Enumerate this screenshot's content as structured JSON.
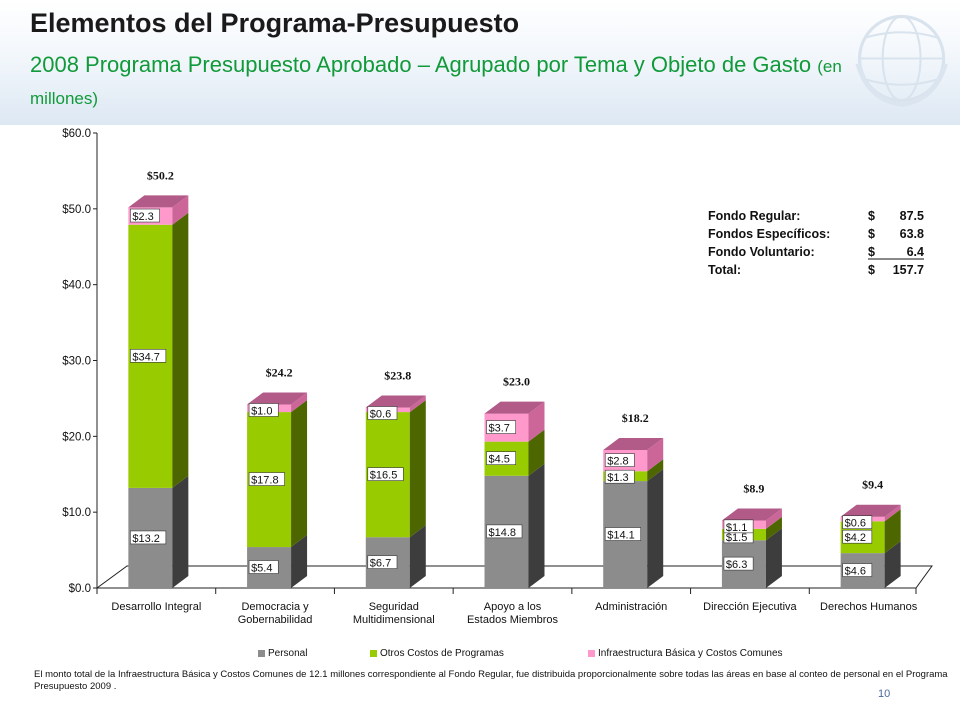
{
  "header": {
    "title": "Elementos del Programa-Presupuesto",
    "subtitle_main": "2008 Programa Presupuesto Aprobado – Agrupado por Tema y Objeto de Gasto",
    "subtitle_small": "(en millones)"
  },
  "chart_data": {
    "type": "bar",
    "stacked": true,
    "categories": [
      "Desarrollo Integral",
      "Democracia y Gobernabilidad",
      "Seguridad Multidimensional",
      "Apoyo a los Estados Miembros",
      "Administración",
      "Dirección Ejecutiva",
      "Derechos Humanos"
    ],
    "category_lines": [
      [
        "Desarrollo Integral"
      ],
      [
        "Democracia y",
        "Gobernabilidad"
      ],
      [
        "Seguridad",
        "Multidimensional"
      ],
      [
        "Apoyo a los",
        "Estados Miembros"
      ],
      [
        "Administración"
      ],
      [
        "Dirección Ejecutiva"
      ],
      [
        "Derechos Humanos"
      ]
    ],
    "series": [
      {
        "name": "Personal",
        "color": "#8c8c8c",
        "values": [
          13.2,
          5.4,
          6.7,
          14.8,
          14.1,
          6.3,
          4.6
        ],
        "labels": [
          "$13.2",
          "$5.4",
          "$6.7",
          "$14.8",
          "$14.1",
          "$6.3",
          "$4.6"
        ]
      },
      {
        "name": "Otros Costos de Programas",
        "color": "#99cc00",
        "values": [
          34.7,
          17.8,
          16.5,
          4.5,
          1.3,
          1.5,
          4.2
        ],
        "labels": [
          "$34.7",
          "$17.8",
          "$16.5",
          "$4.5",
          "$1.3",
          "$1.5",
          "$4.2"
        ]
      },
      {
        "name": "Infraestructura Básica y Costos Comunes",
        "color": "#ff99cc",
        "values": [
          2.3,
          1.0,
          0.6,
          3.7,
          2.8,
          1.1,
          0.6
        ],
        "labels": [
          "$2.3",
          "$1.0",
          "$0.6",
          "$3.7",
          "$2.8",
          "$1.1",
          "$0.6"
        ]
      }
    ],
    "totals": [
      50.2,
      24.2,
      23.8,
      23.0,
      18.2,
      8.9,
      9.4
    ],
    "total_labels": [
      "$50.2",
      "$24.2",
      "$23.8",
      "$23.0",
      "$18.2",
      "$8.9",
      "$9.4"
    ],
    "y_ticks": [
      "$0.0",
      "$10.0",
      "$20.0",
      "$30.0",
      "$40.0",
      "$50.0",
      "$60.0"
    ],
    "ylim": [
      0,
      60
    ],
    "legend_position": "bottom",
    "summary_table": [
      {
        "label": "Fondo Regular:",
        "currency": "$",
        "amount": "87.5"
      },
      {
        "label": "Fondos Específicos:",
        "currency": "$",
        "amount": "63.8"
      },
      {
        "label": "Fondo Voluntario:",
        "currency": "$",
        "amount": "6.4"
      },
      {
        "label": "Total:",
        "currency": "$",
        "amount": "157.7"
      }
    ]
  },
  "footnote": "El monto total de la Infraestructura Básica y Costos Comunes de 12.1 millones correspondiente al Fondo Regular, fue distribuida proporcionalmente sobre todas las áreas en base al conteo de personal en el Programa Presupuesto 2009 .",
  "page_number": "10",
  "colors": {
    "personal": "#8c8c8c",
    "otros": "#99cc00",
    "infra": "#ff99cc",
    "subtitle": "#119a3a"
  },
  "icons": {
    "logo": "oas-globe-logo"
  }
}
